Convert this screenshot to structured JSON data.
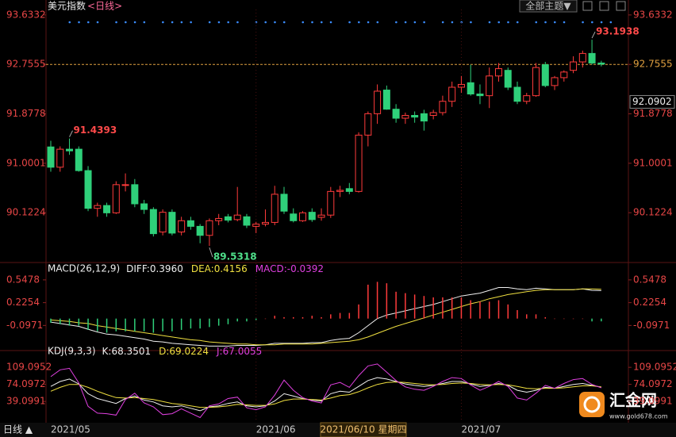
{
  "ui": {
    "theme_button": "全部主题▼",
    "period_button": "日线 ▲",
    "crosshair_date": "2021/06/10 星期四",
    "logo": "汇金网",
    "logo_url": "www.gold678.com"
  },
  "chart_data": [
    {
      "type": "candlestick",
      "title": "美元指数",
      "period": "<日线>",
      "categories": [
        "2021/05",
        null,
        null,
        null,
        null,
        null,
        null,
        null,
        null,
        null,
        null,
        null,
        null,
        null,
        null,
        null,
        null,
        null,
        null,
        null,
        null,
        null,
        "2021/06",
        null,
        null,
        null,
        null,
        null,
        null,
        null,
        null,
        null,
        null,
        null,
        null,
        null,
        null,
        null,
        null,
        null,
        null,
        null,
        null,
        null,
        "2021/07",
        null,
        null,
        null,
        null,
        null,
        null,
        null,
        null,
        null,
        null,
        null,
        null,
        null,
        null,
        null
      ],
      "open": [
        91.29,
        90.93,
        91.25,
        91.25,
        90.87,
        90.2,
        90.25,
        90.12,
        90.62,
        90.62,
        90.28,
        90.18,
        89.78,
        90.13,
        89.78,
        89.98,
        89.88,
        89.72,
        89.98,
        90.05,
        90.0,
        90.05,
        89.88,
        89.92,
        89.95,
        90.45,
        90.1,
        89.98,
        90.13,
        90.04,
        90.08,
        90.5,
        90.55,
        90.5,
        91.5,
        91.88,
        92.3,
        91.96,
        91.8,
        91.85,
        91.88,
        91.85,
        91.9,
        92.1,
        92.35,
        92.43,
        92.23,
        92.2,
        92.55,
        92.65,
        92.35,
        92.1,
        92.2,
        92.75,
        92.38,
        92.52,
        92.65,
        92.8,
        92.95,
        92.78
      ],
      "high": [
        91.4,
        91.3,
        91.4393,
        91.3,
        90.95,
        90.3,
        90.3,
        90.68,
        90.82,
        90.72,
        90.35,
        90.22,
        90.18,
        90.18,
        90.05,
        90.05,
        89.92,
        90.02,
        90.1,
        90.1,
        90.58,
        90.1,
        89.96,
        90.18,
        90.6,
        90.58,
        90.2,
        90.15,
        90.2,
        90.2,
        90.58,
        90.6,
        90.65,
        91.55,
        91.92,
        92.4,
        92.38,
        92.05,
        91.9,
        91.92,
        91.95,
        91.95,
        92.2,
        92.45,
        92.55,
        92.75,
        92.4,
        92.7,
        92.78,
        92.7,
        92.45,
        92.25,
        92.78,
        92.8,
        92.55,
        92.65,
        92.9,
        93.0,
        93.1938,
        92.82
      ],
      "low": [
        90.85,
        90.85,
        91.15,
        90.85,
        90.15,
        90.05,
        90.05,
        90.1,
        90.5,
        90.22,
        90.1,
        89.7,
        89.72,
        89.72,
        89.72,
        89.82,
        89.58,
        89.5318,
        89.9,
        89.95,
        89.97,
        89.85,
        89.76,
        89.88,
        89.9,
        90.1,
        89.95,
        89.96,
        89.96,
        89.98,
        90.03,
        90.4,
        90.45,
        90.48,
        91.3,
        91.7,
        91.95,
        91.72,
        91.7,
        91.72,
        91.58,
        91.78,
        91.85,
        92.0,
        92.25,
        92.2,
        92.05,
        91.98,
        92.45,
        92.3,
        92.05,
        92.05,
        92.18,
        92.35,
        92.3,
        92.45,
        92.6,
        92.7,
        92.75,
        92.72
      ],
      "close": [
        90.93,
        91.25,
        91.22,
        90.87,
        90.2,
        90.25,
        90.12,
        90.62,
        90.62,
        90.28,
        90.18,
        89.75,
        90.13,
        89.76,
        89.98,
        89.88,
        89.72,
        89.98,
        90.02,
        89.99,
        90.08,
        89.9,
        89.92,
        89.95,
        90.45,
        90.15,
        89.98,
        90.12,
        90.0,
        90.08,
        90.5,
        90.52,
        90.5,
        91.5,
        91.88,
        92.28,
        91.96,
        91.8,
        91.85,
        91.82,
        91.75,
        91.9,
        92.1,
        92.35,
        92.4,
        92.23,
        92.2,
        92.55,
        92.68,
        92.35,
        92.1,
        92.2,
        92.7,
        92.38,
        92.52,
        92.62,
        92.8,
        92.95,
        92.78,
        92.76
      ],
      "up_color": "#ff3b3b",
      "down_color": "#2fd07a",
      "ylim": [
        89.28,
        93.73
      ],
      "yticks": [
        93.6332,
        92.7555,
        91.8778,
        91.0001,
        90.1224
      ],
      "reference_line": 92.7555,
      "reference_color": "#e0a040",
      "last_price": 92.0902,
      "annotations": [
        91.4393,
        89.5318,
        93.1938
      ]
    },
    {
      "type": "line",
      "title": "MACD(26,12,9)",
      "ylim": [
        -0.43,
        0.67
      ],
      "yticks": [
        0.5478,
        0.2254,
        -0.0971
      ],
      "series": [
        {
          "name": "DIFF:",
          "color": "#f0f0f0",
          "kind": "line",
          "values": [
            -0.05,
            -0.07,
            -0.09,
            -0.11,
            -0.15,
            -0.19,
            -0.22,
            -0.23,
            -0.25,
            -0.27,
            -0.29,
            -0.32,
            -0.33,
            -0.35,
            -0.36,
            -0.37,
            -0.38,
            -0.39,
            -0.39,
            -0.39,
            -0.38,
            -0.38,
            -0.38,
            -0.37,
            -0.35,
            -0.35,
            -0.35,
            -0.35,
            -0.34,
            -0.34,
            -0.31,
            -0.29,
            -0.28,
            -0.2,
            -0.1,
            0.0,
            0.05,
            0.08,
            0.11,
            0.14,
            0.17,
            0.2,
            0.24,
            0.28,
            0.32,
            0.34,
            0.36,
            0.4,
            0.44,
            0.44,
            0.42,
            0.41,
            0.43,
            0.42,
            0.41,
            0.41,
            0.41,
            0.42,
            0.4,
            0.396
          ],
          "value_labels": [
            null,
            null,
            null,
            null,
            null,
            null,
            null,
            null,
            null,
            null,
            null,
            null,
            null,
            null,
            null,
            null,
            null,
            null,
            null,
            null,
            null,
            null,
            null,
            null,
            null,
            null,
            null,
            null,
            null,
            null,
            null,
            null,
            null,
            null,
            null,
            null,
            null,
            null,
            null,
            null,
            null,
            null,
            null,
            null,
            null,
            null,
            null,
            null,
            null,
            null,
            null,
            null,
            null,
            null,
            null,
            null,
            null,
            null,
            null,
            "0.3960"
          ]
        },
        {
          "name": "DEA:",
          "color": "#f0e040",
          "kind": "line",
          "values": [
            -0.02,
            -0.03,
            -0.04,
            -0.06,
            -0.07,
            -0.1,
            -0.12,
            -0.14,
            -0.16,
            -0.18,
            -0.2,
            -0.22,
            -0.24,
            -0.26,
            -0.28,
            -0.3,
            -0.31,
            -0.33,
            -0.34,
            -0.35,
            -0.36,
            -0.36,
            -0.37,
            -0.37,
            -0.37,
            -0.36,
            -0.36,
            -0.36,
            -0.36,
            -0.35,
            -0.34,
            -0.33,
            -0.32,
            -0.3,
            -0.26,
            -0.21,
            -0.16,
            -0.11,
            -0.07,
            -0.03,
            0.01,
            0.05,
            0.09,
            0.13,
            0.17,
            0.21,
            0.24,
            0.28,
            0.31,
            0.34,
            0.36,
            0.38,
            0.4,
            0.41,
            0.41,
            0.41,
            0.41,
            0.42,
            0.42,
            0.4156
          ]
        },
        {
          "name": "MACD:",
          "color": "#e040e0",
          "kind": "bar",
          "up_color": "#ff3b3b",
          "down_color": "#2fd07a",
          "values": [
            -0.06,
            -0.08,
            -0.1,
            -0.1,
            -0.16,
            -0.18,
            -0.2,
            -0.18,
            -0.18,
            -0.18,
            -0.18,
            -0.2,
            -0.18,
            -0.18,
            -0.16,
            -0.14,
            -0.14,
            -0.12,
            -0.1,
            -0.08,
            -0.04,
            -0.04,
            -0.02,
            0.0,
            0.04,
            0.02,
            0.02,
            0.02,
            0.04,
            0.02,
            0.06,
            0.08,
            0.08,
            0.2,
            0.48,
            0.52,
            0.5,
            0.38,
            0.36,
            0.34,
            0.32,
            0.3,
            0.3,
            0.3,
            0.3,
            0.26,
            0.24,
            0.24,
            0.26,
            0.2,
            0.12,
            0.06,
            0.06,
            0.02,
            0.0,
            0.0,
            0.0,
            0.0,
            -0.04,
            -0.0392
          ]
        }
      ]
    },
    {
      "type": "line",
      "title": "KDJ(9,3,3)",
      "ylim": [
        -3,
        137
      ],
      "yticks": [
        109.0952,
        74.0972,
        39.0991
      ],
      "series": [
        {
          "name": "K:",
          "color": "#f0f0f0",
          "kind": "line",
          "values": [
            70,
            80,
            85,
            75,
            55,
            45,
            40,
            35,
            45,
            50,
            42,
            38,
            30,
            28,
            30,
            25,
            20,
            28,
            30,
            35,
            38,
            30,
            28,
            30,
            40,
            55,
            50,
            45,
            42,
            40,
            55,
            60,
            58,
            70,
            82,
            88,
            85,
            80,
            75,
            72,
            70,
            72,
            76,
            80,
            80,
            75,
            70,
            72,
            76,
            72,
            62,
            58,
            62,
            68,
            66,
            70,
            74,
            76,
            72,
            68.3501
          ]
        },
        {
          "name": "D:",
          "color": "#f0e040",
          "kind": "line",
          "values": [
            60,
            68,
            74,
            74,
            68,
            60,
            53,
            47,
            46,
            47,
            45,
            43,
            39,
            35,
            33,
            30,
            27,
            27,
            28,
            30,
            33,
            32,
            31,
            31,
            34,
            41,
            44,
            44,
            43,
            42,
            46,
            51,
            53,
            59,
            67,
            74,
            78,
            79,
            78,
            76,
            74,
            73,
            74,
            76,
            77,
            76,
            74,
            73,
            74,
            73,
            70,
            66,
            65,
            66,
            66,
            67,
            69,
            71,
            71,
            69.0224
          ]
        },
        {
          "name": "J:",
          "color": "#e040e0",
          "kind": "line",
          "values": [
            90,
            104,
            107,
            77,
            29,
            15,
            14,
            11,
            43,
            56,
            36,
            28,
            12,
            14,
            24,
            15,
            6,
            30,
            34,
            45,
            48,
            26,
            22,
            28,
            52,
            83,
            62,
            47,
            40,
            36,
            73,
            78,
            68,
            92,
            112,
            116,
            99,
            82,
            69,
            64,
            62,
            70,
            80,
            88,
            86,
            73,
            62,
            70,
            80,
            70,
            46,
            42,
            56,
            72,
            66,
            76,
            84,
            86,
            74,
            67.0055
          ]
        }
      ]
    }
  ]
}
